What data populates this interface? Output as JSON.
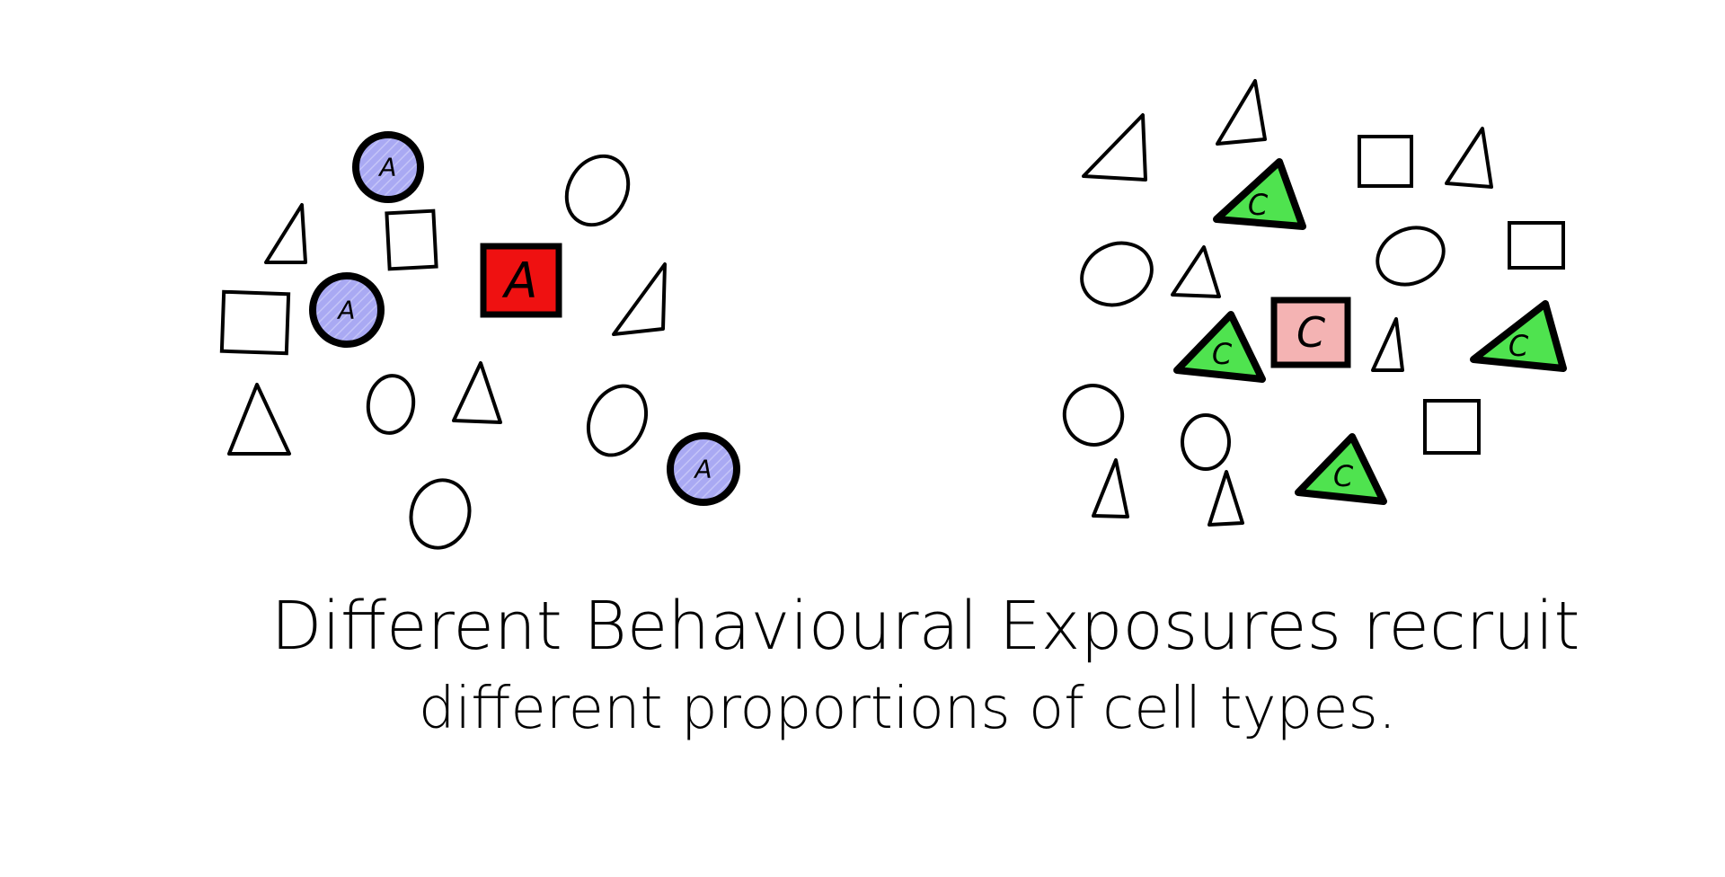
{
  "caption": {
    "line1": "Different Behavioural Exposures recruit",
    "line2": "different proportions of cell types."
  },
  "colors": {
    "ink": "#000000",
    "blue_fill": "#a9a9f3",
    "red_fill": "#ef1111",
    "pink_fill": "#f4b3b3",
    "green_fill": "#4fe34f"
  },
  "groups": [
    {
      "name": "group-a",
      "labeled_cells": [
        {
          "shape": "circle",
          "label": "A",
          "fill": "blue_fill"
        },
        {
          "shape": "circle",
          "label": "A",
          "fill": "blue_fill"
        },
        {
          "shape": "circle",
          "label": "A",
          "fill": "blue_fill"
        },
        {
          "shape": "square",
          "label": "A",
          "fill": "red_fill"
        }
      ],
      "unlabeled_counts": {
        "triangle": 4,
        "square": 2,
        "oval": 4
      }
    },
    {
      "name": "group-c",
      "labeled_cells": [
        {
          "shape": "triangle",
          "label": "C",
          "fill": "green_fill"
        },
        {
          "shape": "triangle",
          "label": "C",
          "fill": "green_fill"
        },
        {
          "shape": "triangle",
          "label": "C",
          "fill": "green_fill"
        },
        {
          "shape": "triangle",
          "label": "C",
          "fill": "green_fill"
        },
        {
          "shape": "square",
          "label": "C",
          "fill": "pink_fill"
        }
      ],
      "unlabeled_counts": {
        "triangle": 7,
        "square": 3,
        "oval": 4
      }
    }
  ]
}
